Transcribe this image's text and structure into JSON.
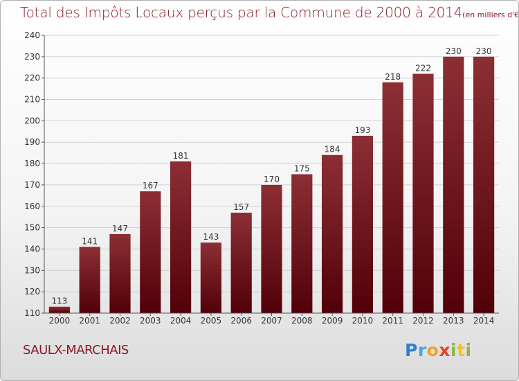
{
  "title": "Total des Impôts Locaux perçus par la Commune de 2000 à 2014",
  "title_unit": "(en milliers d'€)",
  "commune": "SAULX-MARCHAIS",
  "logo_text": "Proxiti",
  "colors": {
    "title": "#8a1c24",
    "bar_top": "#8c2f35",
    "bar_bottom": "#520008",
    "axis": "#333333"
  },
  "chart_data": {
    "type": "bar",
    "title": "Total des Impôts Locaux perçus par la Commune de 2000 à 2014",
    "unit": "(en milliers d'€)",
    "categories": [
      "2000",
      "2001",
      "2002",
      "2003",
      "2004",
      "2005",
      "2006",
      "2007",
      "2008",
      "2009",
      "2010",
      "2011",
      "2012",
      "2013",
      "2014"
    ],
    "values": [
      113,
      141,
      147,
      167,
      181,
      143,
      157,
      170,
      175,
      184,
      193,
      218,
      222,
      230,
      230
    ],
    "ylim": [
      110,
      240
    ],
    "yticks": [
      110,
      120,
      130,
      140,
      150,
      160,
      170,
      180,
      190,
      200,
      210,
      220,
      230,
      240
    ],
    "grid": true,
    "legend": "none"
  }
}
